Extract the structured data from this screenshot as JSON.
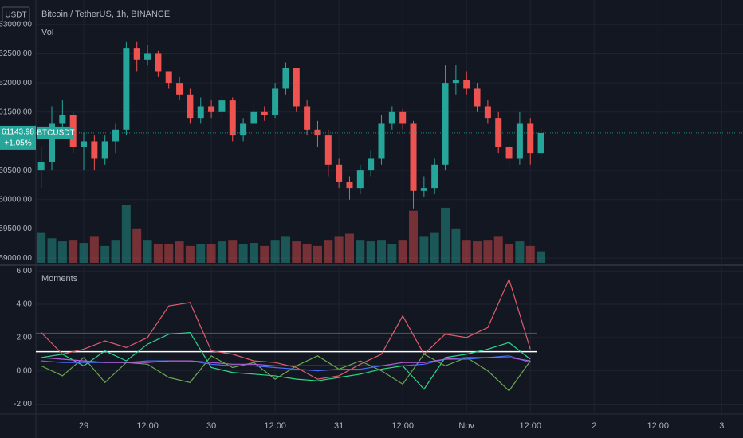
{
  "chart_data": [
    {
      "type": "candlestick",
      "title": "Bitcoin / TetherUS, 1h, BINANCE",
      "currency": "USDT",
      "symbol": "BTCUSDT",
      "volume_title": "Vol",
      "x": [
        -8,
        -6,
        -4,
        -2,
        0,
        2,
        4,
        6,
        8,
        10,
        12,
        14,
        16,
        18,
        20,
        22,
        24,
        26,
        28,
        30,
        32,
        34,
        36,
        38,
        40,
        42,
        44,
        46,
        48,
        50,
        52,
        54,
        56,
        58,
        60,
        62,
        64,
        66,
        68,
        70,
        72,
        74,
        76,
        78,
        80,
        82,
        84,
        86
      ],
      "open": [
        60500,
        60650,
        61300,
        61450,
        60900,
        61000,
        60700,
        61000,
        61200,
        62600,
        62400,
        62500,
        62200,
        62000,
        61800,
        61400,
        61600,
        61500,
        61700,
        61100,
        61300,
        61500,
        61450,
        61900,
        62250,
        61600,
        61200,
        61100,
        60600,
        60300,
        60200,
        60500,
        60700,
        61300,
        61500,
        61300,
        60150,
        60200,
        60600,
        62000,
        62050,
        61900,
        61600,
        61400,
        60900,
        60700,
        61300,
        60800
      ],
      "high": [
        60900,
        61600,
        61700,
        61500,
        61150,
        61100,
        61100,
        61300,
        62700,
        62700,
        62650,
        62550,
        62200,
        62100,
        61900,
        61750,
        61700,
        61800,
        61750,
        61400,
        61650,
        61600,
        62000,
        62350,
        62250,
        61700,
        61350,
        61200,
        60700,
        60400,
        60600,
        60850,
        61450,
        61600,
        61550,
        61350,
        60400,
        60700,
        62300,
        62300,
        62200,
        62000,
        61700,
        61500,
        61000,
        61500,
        61400,
        61250
      ],
      "low": [
        60200,
        60500,
        61200,
        60800,
        60500,
        60500,
        60600,
        60800,
        61100,
        62200,
        62300,
        62100,
        61900,
        61700,
        61300,
        61300,
        61400,
        61400,
        61000,
        61000,
        61200,
        61350,
        61400,
        61800,
        61500,
        61100,
        60900,
        60400,
        60200,
        60000,
        60100,
        60400,
        60600,
        61200,
        61200,
        59850,
        60050,
        60100,
        60500,
        61800,
        61800,
        61500,
        61300,
        60800,
        60500,
        60600,
        60600,
        60700
      ],
      "close": [
        60650,
        61300,
        61450,
        60900,
        61000,
        60700,
        61000,
        61200,
        62600,
        62400,
        62500,
        62200,
        62000,
        61800,
        61400,
        61600,
        61500,
        61700,
        61100,
        61300,
        61500,
        61450,
        61900,
        62250,
        61600,
        61200,
        61100,
        60600,
        60300,
        60200,
        60500,
        60700,
        61300,
        61500,
        61300,
        60150,
        60200,
        60600,
        62000,
        62050,
        61900,
        61600,
        61400,
        60900,
        60700,
        61300,
        60800,
        61143.98
      ],
      "volume": [
        40,
        32,
        28,
        30,
        26,
        35,
        22,
        30,
        75,
        45,
        30,
        25,
        25,
        28,
        22,
        25,
        24,
        28,
        30,
        25,
        26,
        22,
        30,
        35,
        28,
        25,
        22,
        30,
        35,
        38,
        30,
        28,
        30,
        25,
        30,
        68,
        35,
        40,
        72,
        45,
        30,
        28,
        30,
        35,
        25,
        28,
        22,
        15
      ],
      "last_price": {
        "value": 61143.98,
        "label": "61143.98"
      },
      "change": {
        "value": 1.05,
        "label": "+1.05%"
      },
      "up_color": "#26a69a",
      "down_color": "#ef5350",
      "xlim": [
        -9,
        124
      ],
      "ylim": [
        58920,
        63420
      ],
      "yticks": [
        {
          "value": 59000,
          "label": "59000.00"
        },
        {
          "value": 59500,
          "label": "59500.00"
        },
        {
          "value": 60000,
          "label": "60000.00"
        },
        {
          "value": 60500,
          "label": "60500.00"
        },
        {
          "value": 61500,
          "label": "61500.00"
        },
        {
          "value": 62000,
          "label": "62000.00"
        },
        {
          "value": 62500,
          "label": "62500.00"
        },
        {
          "value": 63000,
          "label": "63000.00"
        }
      ],
      "grid": true
    },
    {
      "type": "line",
      "title": "Moments",
      "x": [
        -8,
        -4,
        0,
        4,
        8,
        12,
        16,
        20,
        24,
        28,
        32,
        36,
        40,
        44,
        48,
        52,
        56,
        60,
        64,
        68,
        72,
        76,
        80,
        84
      ],
      "series": [
        {
          "color": "#e05c6a",
          "values": [
            2.3,
            1.0,
            1.3,
            1.8,
            1.4,
            2.0,
            3.9,
            4.1,
            1.2,
            1.0,
            0.6,
            0.5,
            0.2,
            -0.5,
            -0.3,
            0.4,
            1.0,
            3.3,
            1.0,
            2.2,
            2.0,
            2.6,
            5.5,
            1.3
          ]
        },
        {
          "color": "#2bd98a",
          "values": [
            0.8,
            1.0,
            0.3,
            1.2,
            0.6,
            1.6,
            2.2,
            2.3,
            0.2,
            -0.1,
            -0.2,
            -0.3,
            -0.5,
            -0.6,
            -0.4,
            -0.2,
            0.1,
            0.3,
            -1.1,
            0.8,
            1.0,
            1.3,
            1.7,
            0.7
          ]
        },
        {
          "color": "#6aa84f",
          "values": [
            0.3,
            -0.3,
            0.8,
            -0.7,
            0.5,
            0.4,
            -0.4,
            -0.7,
            0.9,
            0.2,
            0.5,
            -0.5,
            0.3,
            0.9,
            0.1,
            0.6,
            0.0,
            -0.8,
            1.0,
            0.3,
            0.8,
            0.0,
            -1.2,
            0.6
          ]
        },
        {
          "color": "#4a6cf7",
          "values": [
            0.6,
            0.5,
            0.5,
            0.5,
            0.5,
            0.6,
            0.6,
            0.6,
            0.4,
            0.3,
            0.3,
            0.2,
            0.1,
            0.0,
            0.1,
            0.1,
            0.3,
            0.3,
            0.4,
            0.7,
            0.7,
            0.8,
            0.9,
            0.5
          ]
        },
        {
          "color": "#b05fd6",
          "values": [
            0.8,
            0.7,
            0.6,
            0.5,
            0.5,
            0.5,
            0.6,
            0.6,
            0.5,
            0.4,
            0.4,
            0.3,
            0.3,
            0.3,
            0.3,
            0.3,
            0.3,
            0.5,
            0.5,
            0.7,
            0.8,
            0.8,
            0.8,
            0.6
          ]
        }
      ],
      "hlines": [
        {
          "value": 1.15,
          "color": "#ffffff"
        },
        {
          "value": 2.25,
          "color": "#4a4e5a"
        }
      ],
      "xlim": [
        -9,
        124
      ],
      "ylim": [
        -2.6,
        6.25
      ],
      "yticks": [
        {
          "value": -2,
          "label": "-2.00"
        },
        {
          "value": 0,
          "label": "0.00"
        },
        {
          "value": 2,
          "label": "2.00"
        },
        {
          "value": 4,
          "label": "4.00"
        },
        {
          "value": 6,
          "label": "6.00"
        }
      ],
      "xticks": [
        {
          "value": 0,
          "label": "29"
        },
        {
          "value": 12,
          "label": "12:00"
        },
        {
          "value": 24,
          "label": "30"
        },
        {
          "value": 36,
          "label": "12:00"
        },
        {
          "value": 48,
          "label": "31"
        },
        {
          "value": 60,
          "label": "12:00"
        },
        {
          "value": 72,
          "label": "Nov"
        },
        {
          "value": 84,
          "label": "12:00"
        },
        {
          "value": 96,
          "label": "2"
        },
        {
          "value": 108,
          "label": "12:00"
        },
        {
          "value": 120,
          "label": "3"
        }
      ],
      "grid": true
    }
  ]
}
